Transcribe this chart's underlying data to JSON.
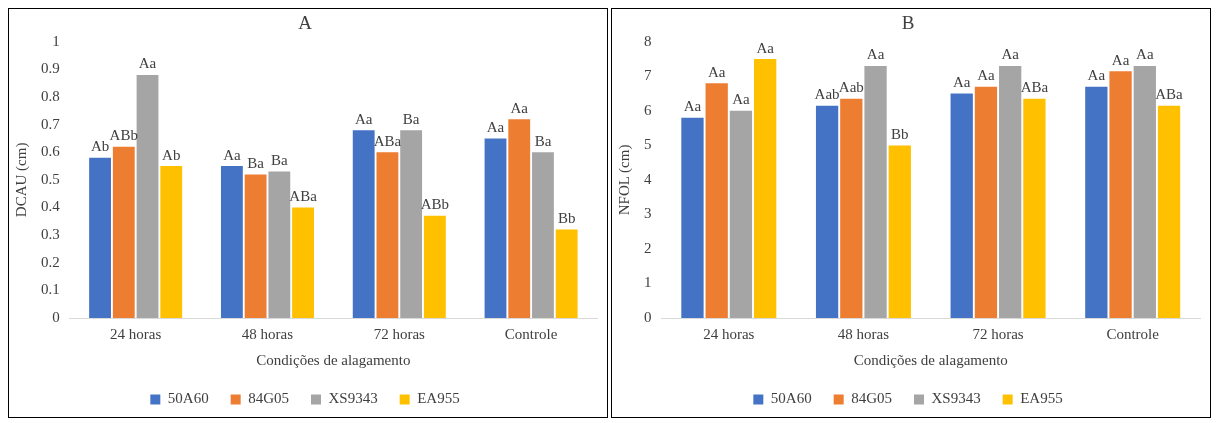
{
  "chart_data": [
    {
      "type": "bar",
      "title": "A",
      "xlabel": "Condições de alagamento",
      "ylabel": "DCAU (cm)",
      "categories": [
        "24 horas",
        "48 horas",
        "72 horas",
        "Controle"
      ],
      "ylim": [
        0,
        1
      ],
      "yticks": [
        0,
        0.1,
        0.2,
        0.3,
        0.4,
        0.5,
        0.6,
        0.7,
        0.8,
        0.9,
        1
      ],
      "grid": false,
      "legend": "bottom",
      "series": [
        {
          "name": "50A60",
          "color": "#4472c4",
          "values": [
            0.58,
            0.55,
            0.68,
            0.65
          ],
          "value_labels": [
            "Ab",
            "Aa",
            "Aa",
            "Aa"
          ]
        },
        {
          "name": "84G05",
          "color": "#ed7d31",
          "values": [
            0.62,
            0.52,
            0.6,
            0.72
          ],
          "value_labels": [
            "ABb",
            "Ba",
            "ABa",
            "Aa"
          ]
        },
        {
          "name": "XS9343",
          "color": "#a5a5a5",
          "values": [
            0.88,
            0.53,
            0.68,
            0.6
          ],
          "value_labels": [
            "Aa",
            "Ba",
            "Ba",
            "Ba"
          ]
        },
        {
          "name": "EA955",
          "color": "#ffc000",
          "values": [
            0.55,
            0.4,
            0.37,
            0.32
          ],
          "value_labels": [
            "Ab",
            "ABa",
            "ABb",
            "Bb"
          ]
        }
      ]
    },
    {
      "type": "bar",
      "title": "B",
      "xlabel": "Condições de alagamento",
      "ylabel": "NFOL (cm)",
      "categories": [
        "24 horas",
        "48 horas",
        "72 horas",
        "Controle"
      ],
      "ylim": [
        0,
        8
      ],
      "yticks": [
        0,
        1,
        2,
        3,
        4,
        5,
        6,
        7,
        8
      ],
      "grid": false,
      "legend": "bottom",
      "series": [
        {
          "name": "50A60",
          "color": "#4472c4",
          "values": [
            5.8,
            6.15,
            6.5,
            6.7
          ],
          "value_labels": [
            "Aa",
            "Aab",
            "Aa",
            "Aa"
          ]
        },
        {
          "name": "84G05",
          "color": "#ed7d31",
          "values": [
            6.8,
            6.35,
            6.7,
            7.15
          ],
          "value_labels": [
            "Aa",
            "Aab",
            "Aa",
            "Aa"
          ]
        },
        {
          "name": "XS9343",
          "color": "#a5a5a5",
          "values": [
            6.0,
            7.3,
            7.3,
            7.3
          ],
          "value_labels": [
            "Aa",
            "Aa",
            "Aa",
            "Aa"
          ]
        },
        {
          "name": "EA955",
          "color": "#ffc000",
          "values": [
            7.5,
            5.0,
            6.35,
            6.15
          ],
          "value_labels": [
            "Aa",
            "Bb",
            "ABa",
            "ABa"
          ]
        }
      ]
    }
  ]
}
